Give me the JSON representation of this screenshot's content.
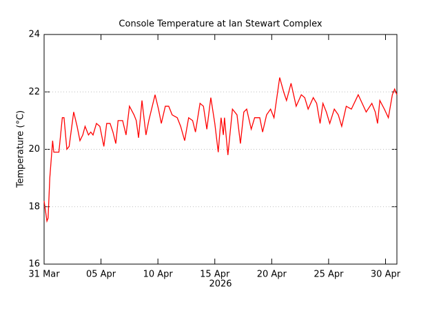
{
  "chart_data": {
    "type": "line",
    "title": "Console Temperature at Ian Stewart Complex",
    "y_label": "Temperature (°C)",
    "x_label": "2026",
    "xlim": [
      0,
      31
    ],
    "xticks": [
      {
        "value": 0,
        "label": "31 Mar"
      },
      {
        "value": 5,
        "label": "05 Apr"
      },
      {
        "value": 10,
        "label": "10 Apr"
      },
      {
        "value": 15,
        "label": "15 Apr"
      },
      {
        "value": 20,
        "label": "20 Apr"
      },
      {
        "value": 25,
        "label": "25 Apr"
      },
      {
        "value": 30,
        "label": "30 Apr"
      }
    ],
    "ylim": [
      16,
      24
    ],
    "yticks": [
      16,
      18,
      20,
      22,
      24
    ],
    "grid": true,
    "series": [
      {
        "color": "#ff0000",
        "x": [
          0,
          0.25,
          0.35,
          0.5,
          0.75,
          0.85,
          1.3,
          1.6,
          1.75,
          2.0,
          2.2,
          2.6,
          2.9,
          3.15,
          3.4,
          3.6,
          3.9,
          4.1,
          4.3,
          4.6,
          4.9,
          5.25,
          5.5,
          5.8,
          6.05,
          6.3,
          6.5,
          6.9,
          7.2,
          7.5,
          7.9,
          8.1,
          8.3,
          8.6,
          8.95,
          9.2,
          9.75,
          10.05,
          10.3,
          10.65,
          10.95,
          11.25,
          11.7,
          12.0,
          12.35,
          12.7,
          13.05,
          13.3,
          13.7,
          14.0,
          14.3,
          14.65,
          15.0,
          15.3,
          15.55,
          15.75,
          15.85,
          16.15,
          16.55,
          16.95,
          17.25,
          17.55,
          17.8,
          18.2,
          18.5,
          18.95,
          19.2,
          19.55,
          19.9,
          20.2,
          20.7,
          21.05,
          21.3,
          21.7,
          22.15,
          22.6,
          22.9,
          23.2,
          23.65,
          23.95,
          24.25,
          24.5,
          24.8,
          25.1,
          25.5,
          25.85,
          26.15,
          26.55,
          27.0,
          27.6,
          27.95,
          28.3,
          28.8,
          29.1,
          29.3,
          29.5,
          29.9,
          30.25,
          30.6,
          30.8,
          31.0
        ],
        "values": [
          18.2,
          17.5,
          17.6,
          19.0,
          20.3,
          19.9,
          19.9,
          21.1,
          21.1,
          20.0,
          20.1,
          21.3,
          20.8,
          20.3,
          20.5,
          20.8,
          20.5,
          20.6,
          20.5,
          20.9,
          20.8,
          20.1,
          20.9,
          20.9,
          20.6,
          20.2,
          21.0,
          21.0,
          20.5,
          21.5,
          21.2,
          21.0,
          20.4,
          21.7,
          20.5,
          21.0,
          21.9,
          21.4,
          20.9,
          21.5,
          21.5,
          21.2,
          21.1,
          20.8,
          20.3,
          21.1,
          21.0,
          20.6,
          21.6,
          21.5,
          20.7,
          21.8,
          20.9,
          19.9,
          21.1,
          20.5,
          21.1,
          19.8,
          21.4,
          21.2,
          20.2,
          21.3,
          21.4,
          20.7,
          21.1,
          21.1,
          20.6,
          21.2,
          21.4,
          21.1,
          22.5,
          22.0,
          21.7,
          22.3,
          21.5,
          21.9,
          21.8,
          21.4,
          21.8,
          21.6,
          20.9,
          21.6,
          21.3,
          20.9,
          21.4,
          21.2,
          20.8,
          21.5,
          21.4,
          21.9,
          21.6,
          21.3,
          21.6,
          21.3,
          20.9,
          21.7,
          21.4,
          21.1,
          21.9,
          22.1,
          21.9
        ]
      }
    ]
  }
}
